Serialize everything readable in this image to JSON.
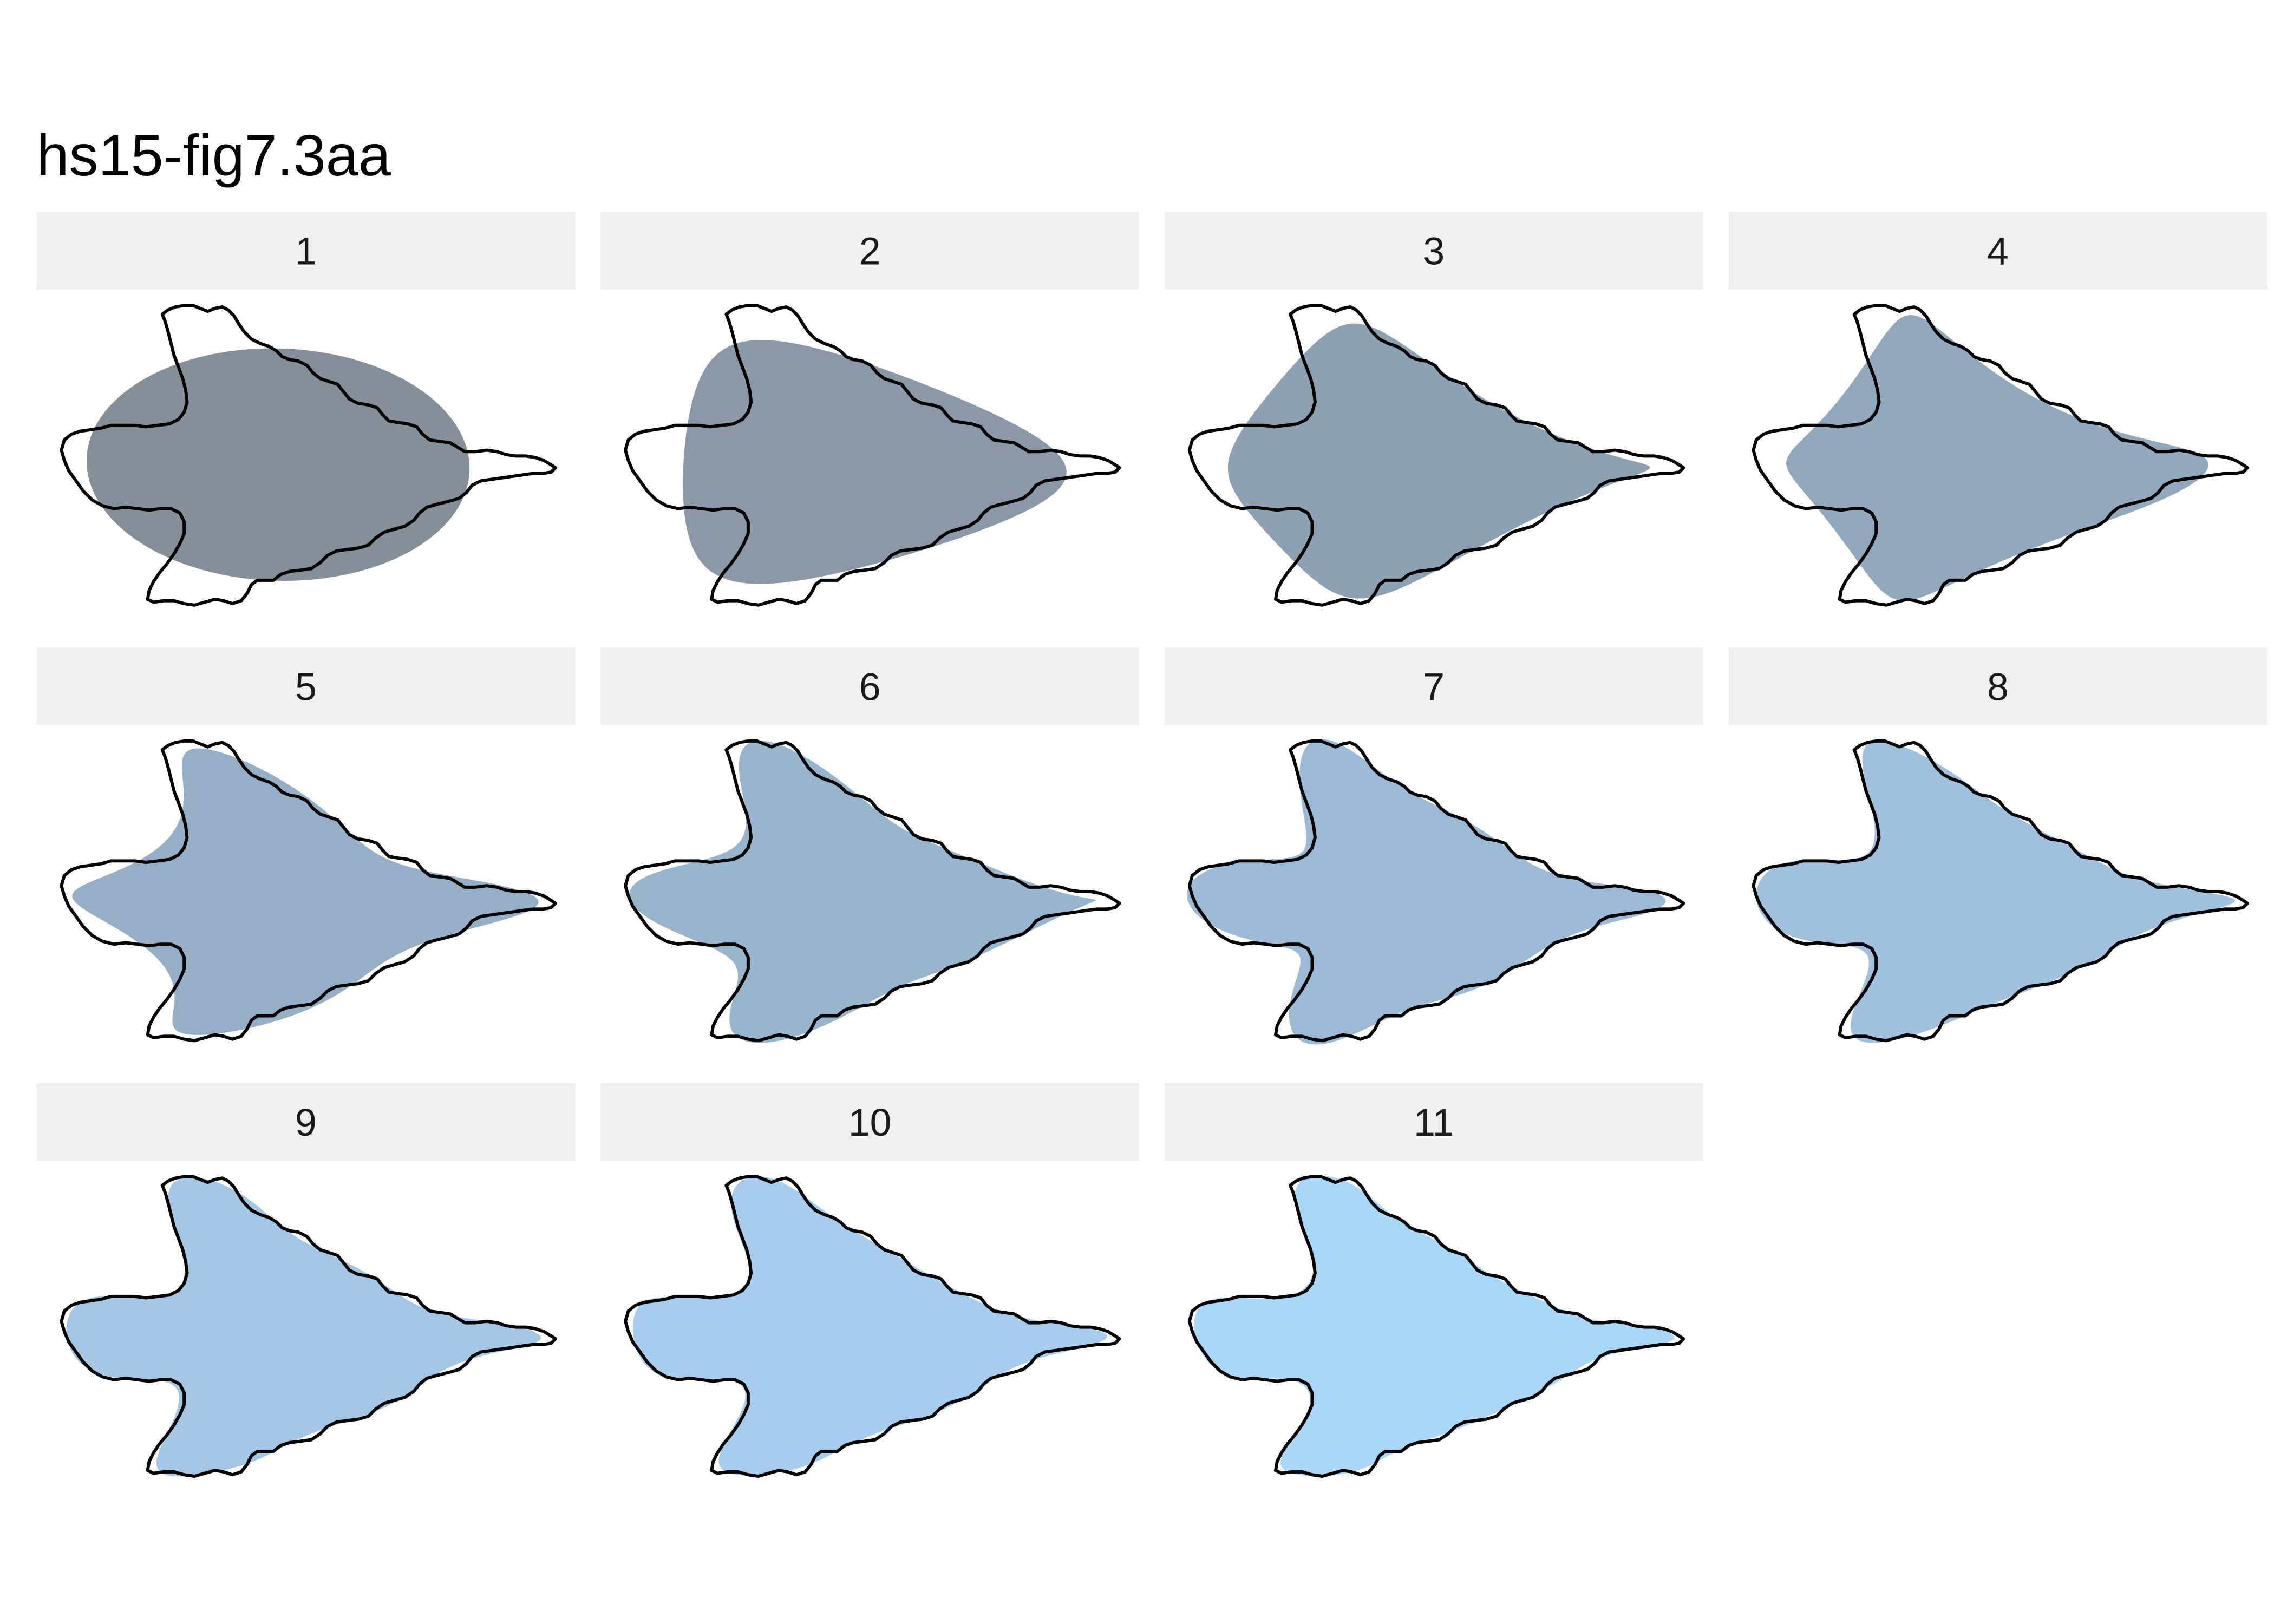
{
  "chart_data": {
    "type": "polygon",
    "title": "hs15-fig7.3aa",
    "grid": false,
    "axes": false,
    "legend": "none",
    "outline_color": "#000000",
    "strip_background": "#F0F0F0",
    "panels": [
      {
        "label": "1",
        "harmonics": 1,
        "fill": "#868E97"
      },
      {
        "label": "2",
        "harmonics": 2,
        "fill": "#8A98A7"
      },
      {
        "label": "3",
        "harmonics": 3,
        "fill": "#8EA1B3"
      },
      {
        "label": "4",
        "harmonics": 4,
        "fill": "#92A8BD"
      },
      {
        "label": "5",
        "harmonics": 5,
        "fill": "#96AEC6"
      },
      {
        "label": "6",
        "harmonics": 6,
        "fill": "#99B4CD"
      },
      {
        "label": "7",
        "harmonics": 7,
        "fill": "#9CBAD5"
      },
      {
        "label": "8",
        "harmonics": 8,
        "fill": "#A0C0DD"
      },
      {
        "label": "9",
        "harmonics": 9,
        "fill": "#A3C6E5"
      },
      {
        "label": "10",
        "harmonics": 10,
        "fill": "#A6CDEE"
      },
      {
        "label": "11",
        "harmonics": 11,
        "fill": "#AAD6F7"
      }
    ]
  }
}
